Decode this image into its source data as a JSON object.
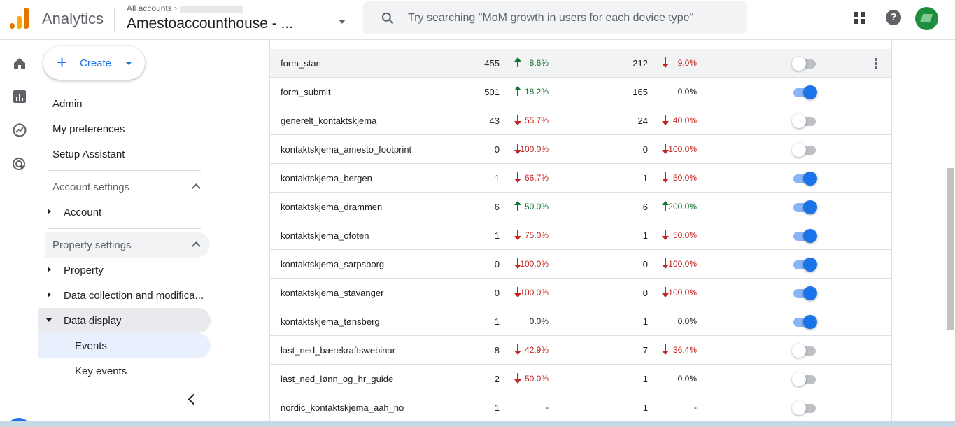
{
  "app": {
    "title": "Analytics"
  },
  "account": {
    "crumb": "All accounts",
    "name": "Amestoaccounthouse"
  },
  "search": {
    "placeholder": "Try searching \"MoM growth in users for each device type\""
  },
  "nav": {
    "create_label": "Create",
    "links": [
      "Admin",
      "My preferences",
      "Setup Assistant"
    ],
    "account_settings": {
      "label": "Account settings",
      "items": [
        "Account"
      ]
    },
    "property_settings": {
      "label": "Property settings",
      "items": [
        "Property",
        "Data collection and modifica...",
        "Data display"
      ]
    },
    "data_display_children": [
      "Events",
      "Key events"
    ],
    "active_item": "Events"
  },
  "colors": {
    "accent": "#1a73e8",
    "up": "#137333",
    "down": "#c5221f",
    "logo_orange": "#f9ab00",
    "logo_dark": "#e37400"
  },
  "events": [
    {
      "name": "form_start",
      "count": "455",
      "count_change": "8.6%",
      "count_dir": "up",
      "users": "212",
      "users_change": "9.0%",
      "users_dir": "down",
      "key_event": false,
      "highlighted": true
    },
    {
      "name": "form_submit",
      "count": "501",
      "count_change": "18.2%",
      "count_dir": "up",
      "users": "165",
      "users_change": "0.0%",
      "users_dir": "flat",
      "key_event": true
    },
    {
      "name": "generelt_kontaktskjema",
      "count": "43",
      "count_change": "55.7%",
      "count_dir": "down",
      "users": "24",
      "users_change": "40.0%",
      "users_dir": "down",
      "key_event": false
    },
    {
      "name": "kontaktskjema_amesto_footprint",
      "count": "0",
      "count_change": "100.0%",
      "count_dir": "down",
      "users": "0",
      "users_change": "100.0%",
      "users_dir": "down",
      "key_event": false
    },
    {
      "name": "kontaktskjema_bergen",
      "count": "1",
      "count_change": "66.7%",
      "count_dir": "down",
      "users": "1",
      "users_change": "50.0%",
      "users_dir": "down",
      "key_event": true
    },
    {
      "name": "kontaktskjema_drammen",
      "count": "6",
      "count_change": "50.0%",
      "count_dir": "up",
      "users": "6",
      "users_change": "200.0%",
      "users_dir": "up",
      "key_event": true
    },
    {
      "name": "kontaktskjema_ofoten",
      "count": "1",
      "count_change": "75.0%",
      "count_dir": "down",
      "users": "1",
      "users_change": "50.0%",
      "users_dir": "down",
      "key_event": true
    },
    {
      "name": "kontaktskjema_sarpsborg",
      "count": "0",
      "count_change": "100.0%",
      "count_dir": "down",
      "users": "0",
      "users_change": "100.0%",
      "users_dir": "down",
      "key_event": true
    },
    {
      "name": "kontaktskjema_stavanger",
      "count": "0",
      "count_change": "100.0%",
      "count_dir": "down",
      "users": "0",
      "users_change": "100.0%",
      "users_dir": "down",
      "key_event": true
    },
    {
      "name": "kontaktskjema_tønsberg",
      "count": "1",
      "count_change": "0.0%",
      "count_dir": "flat",
      "users": "1",
      "users_change": "0.0%",
      "users_dir": "flat",
      "key_event": true
    },
    {
      "name": "last_ned_bærekraftswebinar",
      "count": "8",
      "count_change": "42.9%",
      "count_dir": "down",
      "users": "7",
      "users_change": "36.4%",
      "users_dir": "down",
      "key_event": false
    },
    {
      "name": "last_ned_lønn_og_hr_guide",
      "count": "2",
      "count_change": "50.0%",
      "count_dir": "down",
      "users": "1",
      "users_change": "0.0%",
      "users_dir": "flat",
      "key_event": false
    },
    {
      "name": "nordic_kontaktskjema_aah_no",
      "count": "1",
      "count_change": "-",
      "count_dir": "flat",
      "users": "1",
      "users_change": "-",
      "users_dir": "flat",
      "key_event": false
    }
  ]
}
